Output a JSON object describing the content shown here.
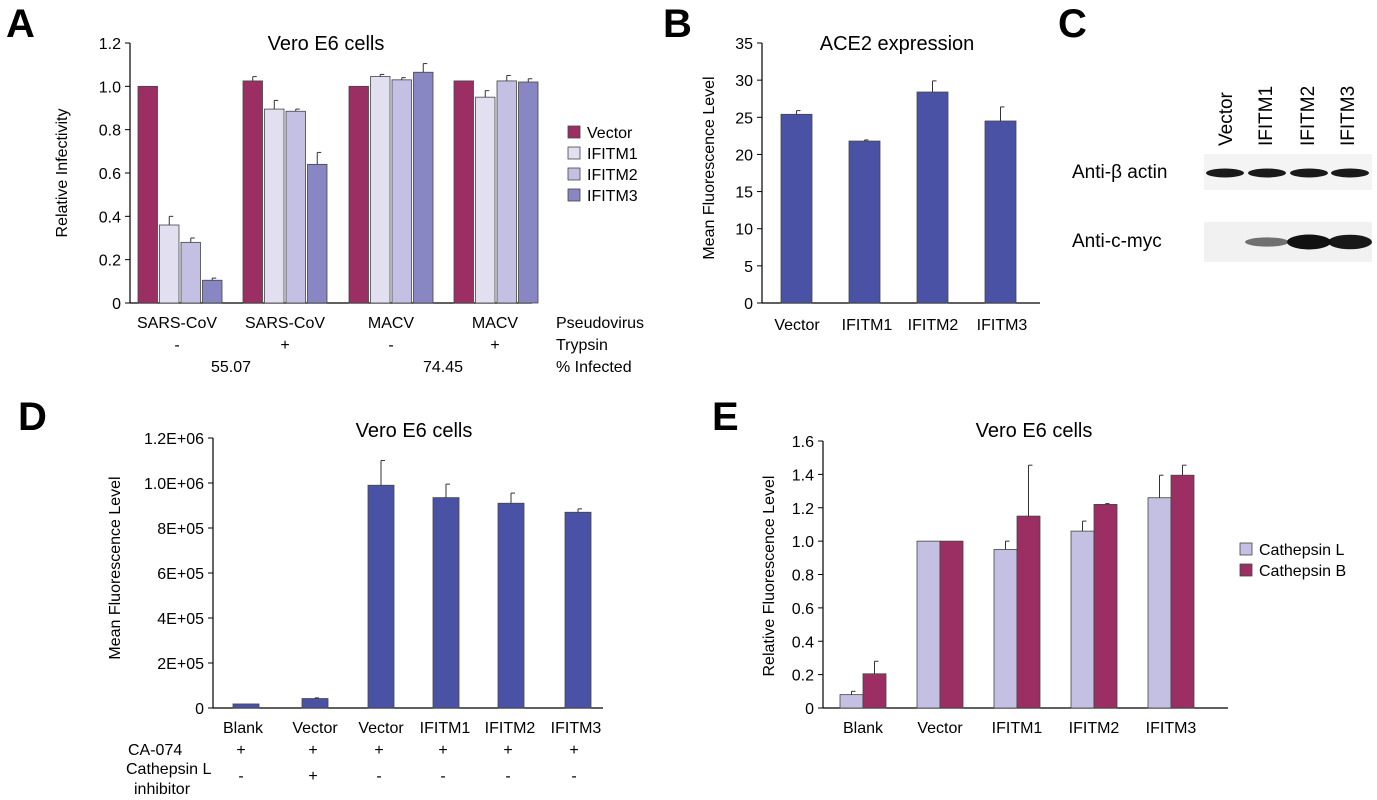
{
  "colors": {
    "vector": "#9b2f63",
    "ifitm1": "#e1dff0",
    "ifitm2": "#c3c0e3",
    "ifitm3": "#8986c4",
    "blue": "#4a52a6",
    "cathepsin_l": "#c3c0e3",
    "cathepsin_b": "#9b2f63"
  },
  "panels": {
    "a": "A",
    "b": "B",
    "c": "C",
    "d": "D",
    "e": "E"
  },
  "chart_data": [
    {
      "id": "A",
      "type": "bar",
      "title": "Vero E6 cells",
      "ylabel": "Relative Infectivity",
      "ylim": [
        0,
        1.2
      ],
      "yticks": [
        "0",
        "0.2",
        "0.4",
        "0.6",
        "0.8",
        "1.0",
        "1.2"
      ],
      "categories": [
        "SARS-CoV",
        "SARS-CoV",
        "MACV",
        "MACV"
      ],
      "series": [
        {
          "name": "Vector",
          "values": [
            1.0,
            1.025,
            1.0,
            1.025
          ],
          "errors": [
            0,
            0.02,
            0,
            0
          ]
        },
        {
          "name": "IFITM1",
          "values": [
            0.36,
            0.895,
            1.045,
            0.95
          ],
          "errors": [
            0.04,
            0.04,
            0.01,
            0.03
          ]
        },
        {
          "name": "IFITM2",
          "values": [
            0.28,
            0.885,
            1.03,
            1.025
          ],
          "errors": [
            0.02,
            0.01,
            0.01,
            0.025
          ]
        },
        {
          "name": "IFITM3",
          "values": [
            0.105,
            0.64,
            1.065,
            1.02
          ],
          "errors": [
            0.01,
            0.055,
            0.04,
            0.015
          ]
        }
      ],
      "legend_position": "right",
      "footer_rows": [
        {
          "label": "Pseudovirus",
          "values": [
            "SARS-CoV",
            "SARS-CoV",
            "MACV",
            "MACV"
          ]
        },
        {
          "label": "Trypsin",
          "values": [
            "-",
            "+",
            "-",
            "+"
          ]
        },
        {
          "label": "% Infected",
          "values": [
            "55.07",
            "74.45"
          ]
        }
      ]
    },
    {
      "id": "B",
      "type": "bar",
      "title": "ACE2 expression",
      "ylabel": "Mean Fluorescence Level",
      "ylim": [
        0,
        35
      ],
      "yticks": [
        "0",
        "5",
        "10",
        "15",
        "20",
        "25",
        "30",
        "35"
      ],
      "categories": [
        "Vector",
        "IFITM1",
        "IFITM2",
        "IFITM3"
      ],
      "values": [
        25.4,
        21.8,
        28.4,
        24.5
      ],
      "errors": [
        0.5,
        0.15,
        1.5,
        1.9
      ]
    },
    {
      "id": "C",
      "type": "blot",
      "lanes": [
        "Vector",
        "IFITM1",
        "IFITM2",
        "IFITM3"
      ],
      "rows": [
        "Anti-β actin",
        "Anti-c-myc"
      ],
      "myc_intensity": [
        0,
        0.35,
        1.0,
        0.95
      ]
    },
    {
      "id": "D",
      "type": "bar",
      "title": "Vero E6 cells",
      "ylabel": "Mean Fluorescence Level",
      "ylim": [
        0,
        1200000
      ],
      "yticks": [
        "0",
        "2E+05",
        "4E+05",
        "6E+05",
        "8E+05",
        "1.0E+06",
        "1.2E+06"
      ],
      "categories": [
        "Blank",
        "Vector",
        "Vector",
        "IFITM1",
        "IFITM2",
        "IFITM3"
      ],
      "values": [
        18000,
        42000,
        990000,
        935000,
        910000,
        870000
      ],
      "errors": [
        0,
        3000,
        110000,
        60000,
        45000,
        15000
      ],
      "footer_rows": [
        {
          "label": "CA-074",
          "values": [
            "+",
            "+",
            "+",
            "+",
            "+",
            "+"
          ]
        },
        {
          "label": "Cathepsin L",
          "label2": "inhibitor",
          "values": [
            "-",
            "+",
            "-",
            "-",
            "-",
            "-"
          ]
        }
      ]
    },
    {
      "id": "E",
      "type": "bar",
      "title": "Vero E6 cells",
      "ylabel": "Relative Fluorescence Level",
      "ylim": [
        0,
        1.6
      ],
      "yticks": [
        "0",
        "0.2",
        "0.4",
        "0.6",
        "0.8",
        "1.0",
        "1.2",
        "1.4",
        "1.6"
      ],
      "categories": [
        "Blank",
        "Vector",
        "IFITM1",
        "IFITM2",
        "IFITM3"
      ],
      "series": [
        {
          "name": "Cathepsin L",
          "values": [
            0.08,
            1.0,
            0.95,
            1.06,
            1.26
          ],
          "errors": [
            0.02,
            0,
            0.05,
            0.06,
            0.135
          ]
        },
        {
          "name": "Cathepsin B",
          "values": [
            0.205,
            1.0,
            1.15,
            1.22,
            1.395
          ],
          "errors": [
            0.075,
            0,
            0.305,
            0.005,
            0.06
          ]
        }
      ],
      "legend_position": "right"
    }
  ]
}
